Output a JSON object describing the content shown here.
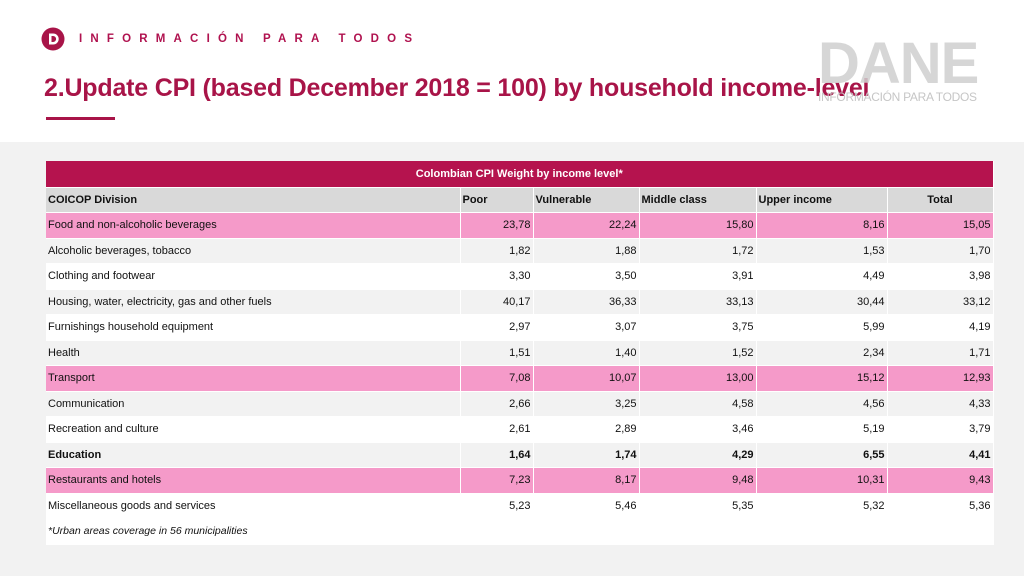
{
  "header": {
    "tagline": "INFORMACIÓN PARA TODOS",
    "title": "2.Update CPI (based December 2018 = 100) by household income-level",
    "watermark_word": "DANE",
    "watermark_tag": "INFORMACIÓN PARA TODOS"
  },
  "colors": {
    "brand": "#a81448",
    "caption_bg": "#b5134e",
    "highlight_row": "#f59ac9",
    "header_bg": "#d9d9d9"
  },
  "table": {
    "caption": "Colombian CPI Weight by income level*",
    "columns": [
      "COICOP Division",
      "Poor",
      "Vulnerable",
      "Middle class",
      "Upper income",
      "Total"
    ],
    "rows": [
      {
        "name": "Food and non-alcoholic beverages",
        "values": [
          "23,78",
          "22,24",
          "15,80",
          "8,16",
          "15,05"
        ],
        "style": "pink"
      },
      {
        "name": "Alcoholic beverages, tobacco",
        "values": [
          "1,82",
          "1,88",
          "1,72",
          "1,53",
          "1,70"
        ],
        "style": "grey"
      },
      {
        "name": "Clothing and footwear",
        "values": [
          "3,30",
          "3,50",
          "3,91",
          "4,49",
          "3,98"
        ],
        "style": "white"
      },
      {
        "name": "Housing, water, electricity, gas and other fuels",
        "values": [
          "40,17",
          "36,33",
          "33,13",
          "30,44",
          "33,12"
        ],
        "style": "grey"
      },
      {
        "name": "Furnishings household equipment",
        "values": [
          "2,97",
          "3,07",
          "3,75",
          "5,99",
          "4,19"
        ],
        "style": "white"
      },
      {
        "name": "Health",
        "values": [
          "1,51",
          "1,40",
          "1,52",
          "2,34",
          "1,71"
        ],
        "style": "grey"
      },
      {
        "name": "Transport",
        "values": [
          "7,08",
          "10,07",
          "13,00",
          "15,12",
          "12,93"
        ],
        "style": "pink"
      },
      {
        "name": "Communication",
        "values": [
          "2,66",
          "3,25",
          "4,58",
          "4,56",
          "4,33"
        ],
        "style": "grey"
      },
      {
        "name": "Recreation and culture",
        "values": [
          "2,61",
          "2,89",
          "3,46",
          "5,19",
          "3,79"
        ],
        "style": "white"
      },
      {
        "name": "Education",
        "values": [
          "1,64",
          "1,74",
          "4,29",
          "6,55",
          "4,41"
        ],
        "style": "grey",
        "bold": true
      },
      {
        "name": "Restaurants and hotels",
        "values": [
          "7,23",
          "8,17",
          "9,48",
          "10,31",
          "9,43"
        ],
        "style": "pink"
      },
      {
        "name": "Miscellaneous goods and services",
        "values": [
          "5,23",
          "5,46",
          "5,35",
          "5,32",
          "5,36"
        ],
        "style": "white"
      }
    ],
    "footnote": "*Urban areas coverage in 56 municipalities"
  }
}
